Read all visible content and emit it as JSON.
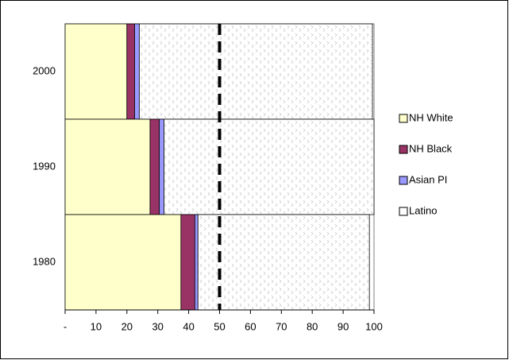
{
  "chart_data": {
    "type": "stacked-barh",
    "categories": [
      "2000",
      "1990",
      "1980"
    ],
    "series": [
      {
        "name": "NH White",
        "color": "#ffffcc",
        "values": [
          20,
          27.5,
          37.5
        ]
      },
      {
        "name": "NH Black",
        "color": "#993366",
        "values": [
          2.5,
          3,
          4.5
        ]
      },
      {
        "name": "Asian PI",
        "color": "#9999ff",
        "values": [
          1.5,
          1.5,
          1
        ]
      },
      {
        "name": "Latino",
        "color": "#ffffff",
        "values": [
          75.5,
          68,
          55.5
        ]
      }
    ],
    "xlim": [
      0,
      100
    ],
    "xticks": [
      {
        "value": 0,
        "label": "-"
      },
      10,
      20,
      30,
      40,
      50,
      60,
      70,
      80,
      90,
      100
    ],
    "reference_line": 50,
    "legend": "right"
  }
}
